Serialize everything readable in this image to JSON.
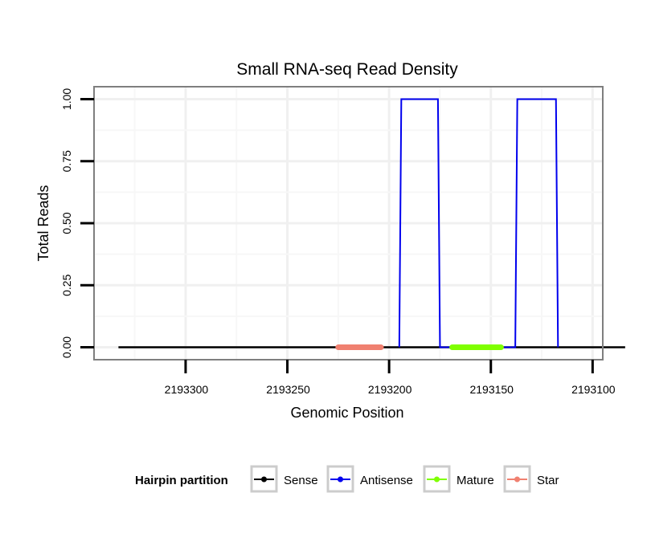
{
  "chart_data": {
    "type": "line",
    "title": "Small RNA-seq Read Density",
    "xlabel": "Genomic Position",
    "ylabel": "Total Reads",
    "x_reversed": true,
    "xlim": [
      2193345,
      2193095
    ],
    "ylim": [
      -0.05,
      1.05
    ],
    "x_ticks": [
      2193300,
      2193250,
      2193200,
      2193150,
      2193100
    ],
    "x_tick_labels": [
      "2193300",
      "2193250",
      "2193200",
      "2193150",
      "2193100"
    ],
    "y_ticks": [
      0,
      0.25,
      0.5,
      0.75,
      1
    ],
    "y_tick_labels": [
      "0.00",
      "0.25",
      "0.50",
      "0.75",
      "1.00"
    ],
    "grid": true,
    "series": [
      {
        "name": "Sense",
        "color": "#000000",
        "x": [
          2193333,
          2193084
        ],
        "y": [
          0,
          0
        ]
      },
      {
        "name": "Antisense",
        "color": "#0000ee",
        "x": [
          2193195,
          2193194,
          2193176,
          2193175,
          2193138,
          2193137,
          2193118,
          2193117
        ],
        "y": [
          0,
          1,
          1,
          0,
          0,
          1,
          1,
          0
        ]
      },
      {
        "name": "Mature",
        "color": "#7fff00",
        "x": [
          2193169,
          2193145
        ],
        "y": [
          0,
          0
        ]
      },
      {
        "name": "Star",
        "color": "#f08070",
        "x": [
          2193225,
          2193204
        ],
        "y": [
          0,
          0
        ]
      }
    ],
    "legend": {
      "title": "Hairpin partition",
      "placement": "bottom",
      "entries": [
        "Sense",
        "Antisense",
        "Mature",
        "Star"
      ]
    }
  }
}
